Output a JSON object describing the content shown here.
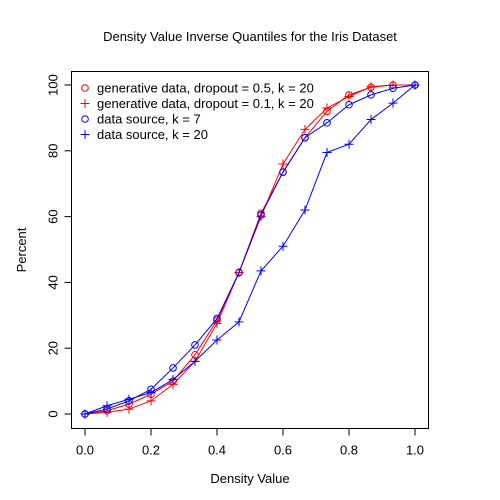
{
  "chart_data": {
    "type": "line",
    "title": "Density Value Inverse Quantiles for the Iris Dataset",
    "xlabel": "Density Value",
    "ylabel": "Percent",
    "xlim": [
      0,
      1
    ],
    "ylim": [
      0,
      100
    ],
    "xticks": [
      0.0,
      0.2,
      0.4,
      0.6,
      0.8,
      1.0
    ],
    "xtick_labels": [
      "0.0",
      "0.2",
      "0.4",
      "0.6",
      "0.8",
      "1.0"
    ],
    "yticks": [
      0,
      20,
      40,
      60,
      80,
      100
    ],
    "ytick_labels": [
      "0",
      "20",
      "40",
      "60",
      "80",
      "100"
    ],
    "grid": false,
    "legend_position": "top-left",
    "x": [
      0.0,
      0.0667,
      0.1333,
      0.2,
      0.2667,
      0.3333,
      0.4,
      0.4667,
      0.5333,
      0.6,
      0.6667,
      0.7333,
      0.8,
      0.8667,
      0.9333,
      1.0
    ],
    "series": [
      {
        "name": "generative data, dropout = 0.5, k = 20",
        "color": "#ff0000",
        "marker": "circle",
        "values": [
          0,
          1,
          3,
          6,
          10,
          18,
          28.5,
          43,
          61,
          73.5,
          84,
          92,
          97,
          99.3,
          100,
          100
        ]
      },
      {
        "name": "generative data, dropout = 0.1, k = 20",
        "color": "#ff0000",
        "marker": "plus",
        "values": [
          0,
          0.5,
          1.5,
          4,
          9,
          16,
          27.5,
          43,
          60,
          76,
          86.5,
          93,
          96.5,
          99.5,
          100,
          100
        ]
      },
      {
        "name": "data source, k = 7",
        "color": "#0000ff",
        "marker": "circle",
        "values": [
          0,
          1.5,
          4,
          7.5,
          14,
          21,
          29,
          43,
          60.5,
          73.5,
          84,
          88.5,
          94,
          97,
          99,
          100
        ]
      },
      {
        "name": "data source, k = 20",
        "color": "#0000ff",
        "marker": "plus",
        "values": [
          0,
          2.5,
          4.5,
          6.5,
          10.5,
          16,
          22.5,
          28,
          43.5,
          51,
          62,
          79.5,
          82,
          89.5,
          94.5,
          100
        ]
      }
    ]
  }
}
